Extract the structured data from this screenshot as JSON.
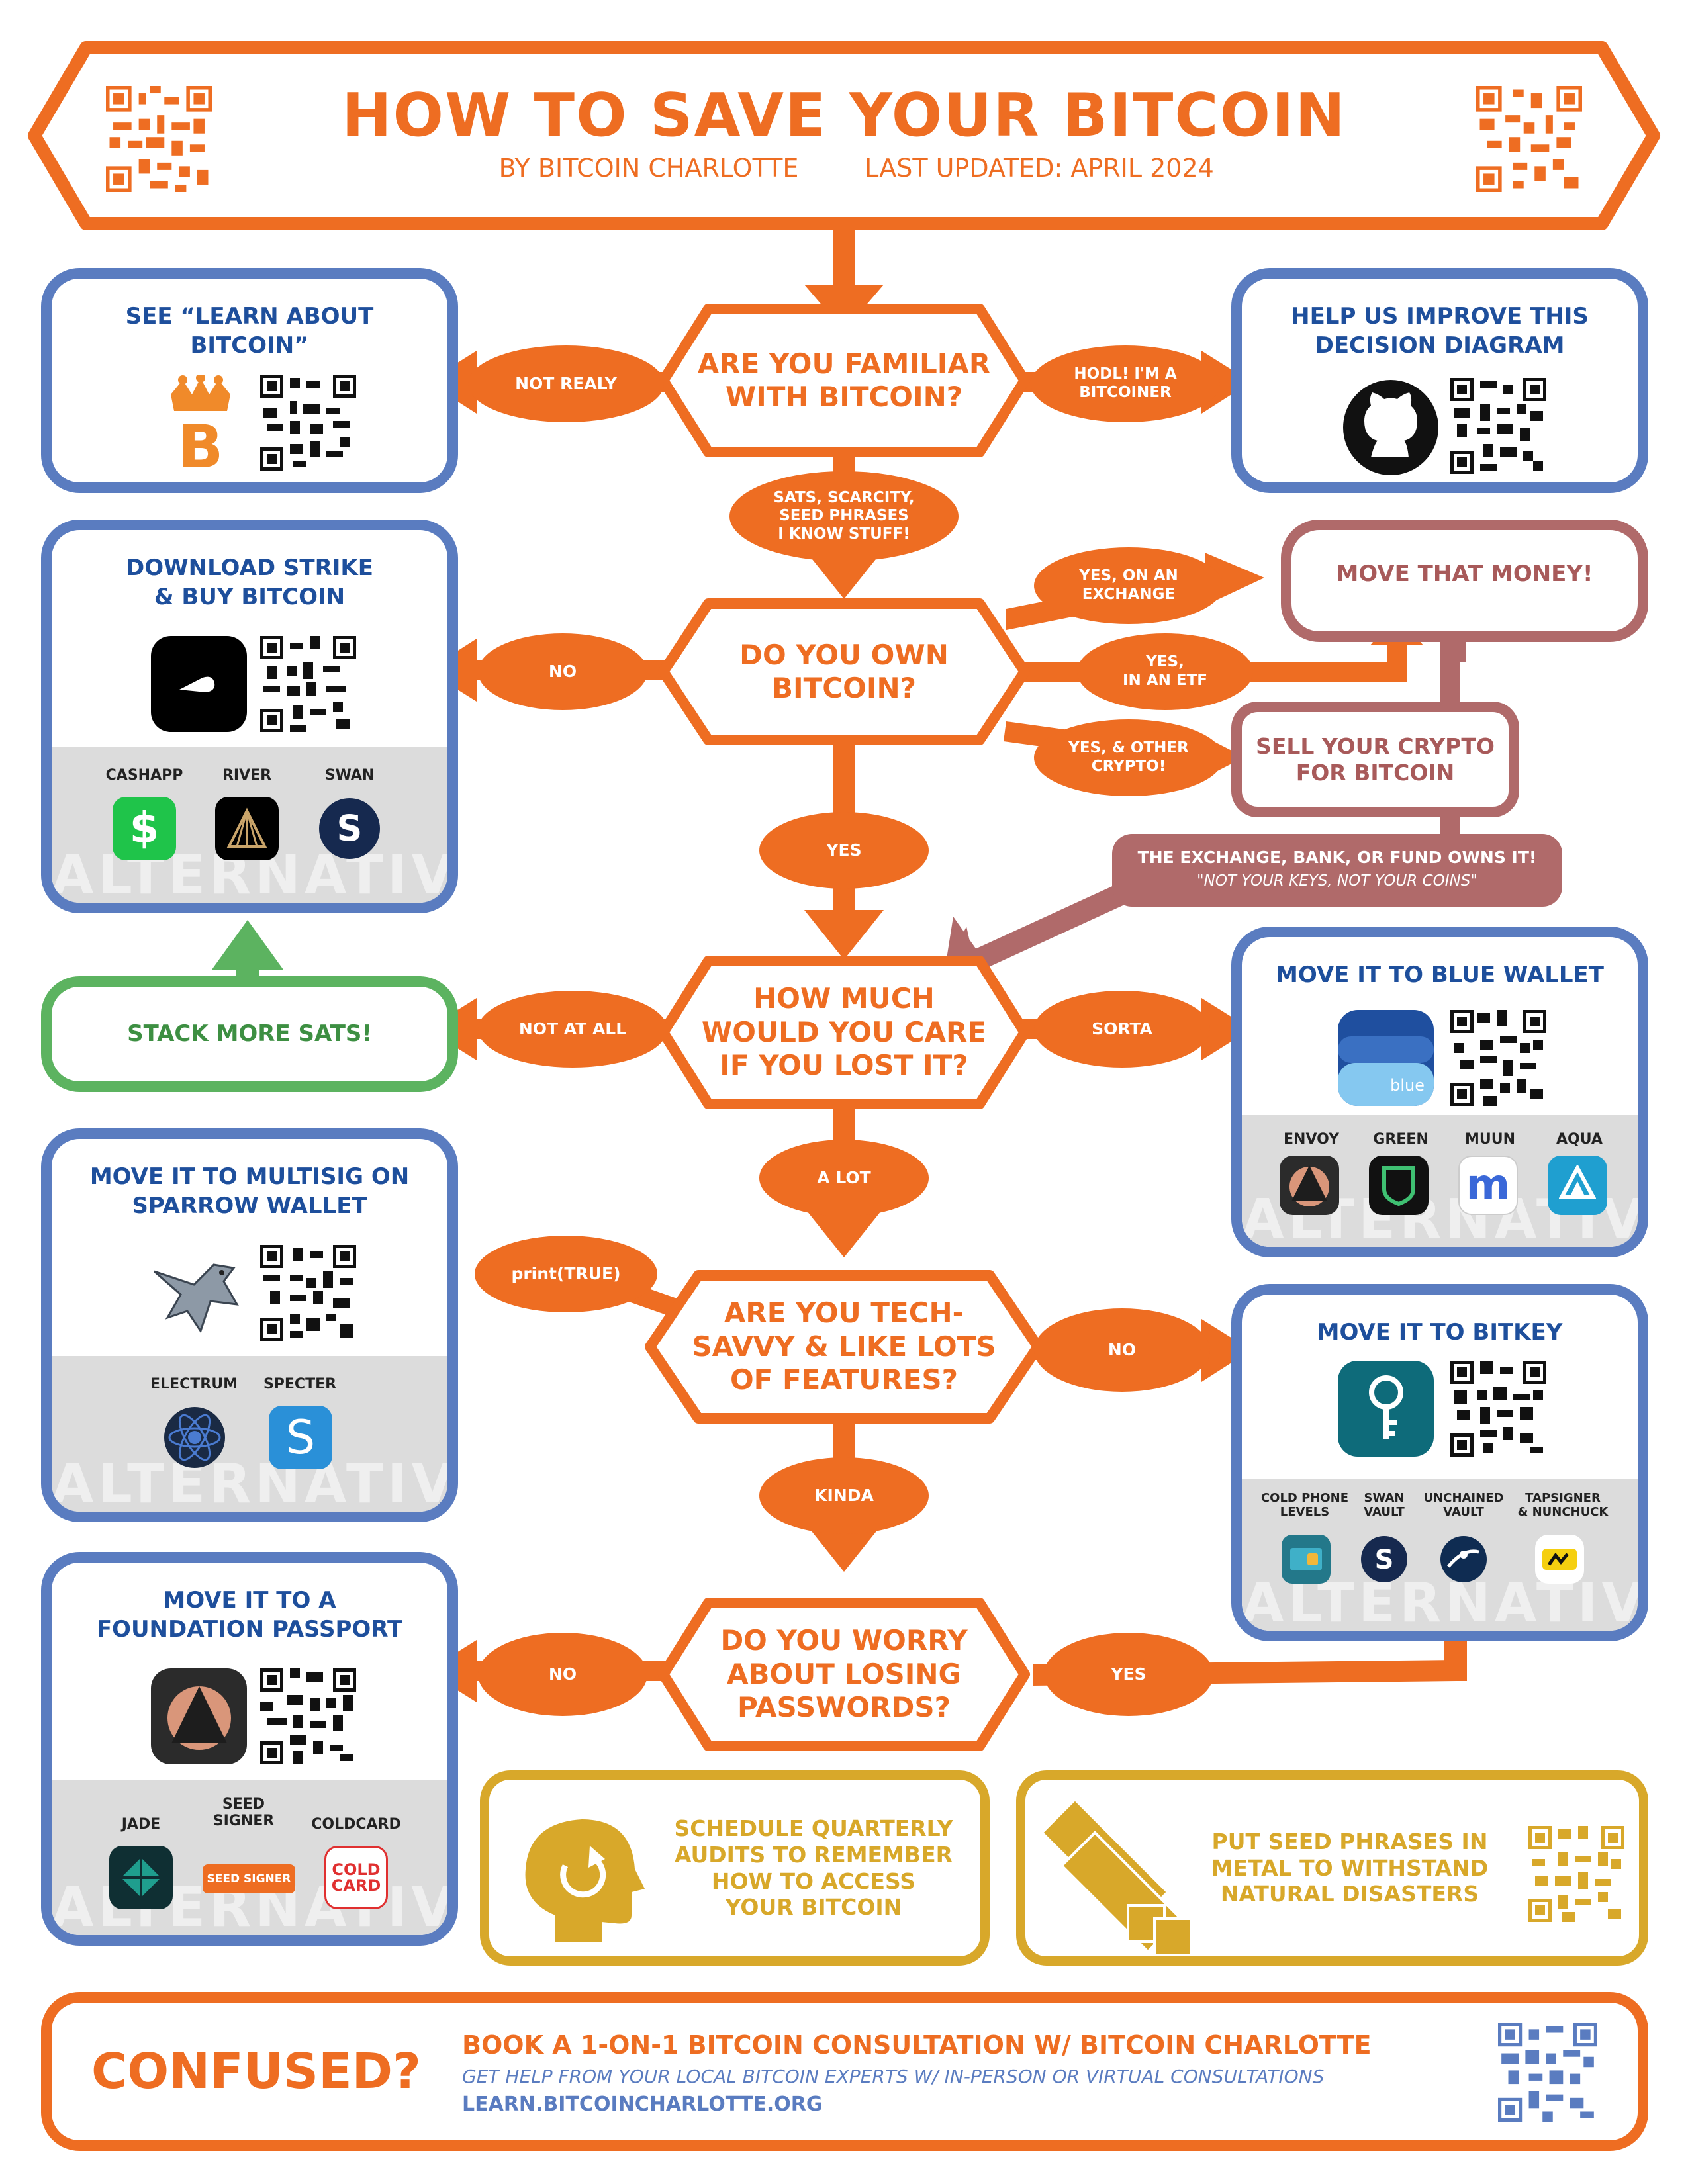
{
  "header": {
    "title": "HOW TO SAVE YOUR BITCOIN",
    "byline": "BY BITCOIN CHARLOTTE",
    "updated": "LAST UPDATED: APRIL 2024"
  },
  "questions": {
    "q1": "ARE YOU FAMILIAR\nWITH BITCOIN?",
    "q2": "DO YOU OWN\nBITCOIN?",
    "q3": "HOW MUCH\nWOULD YOU CARE\nIF YOU LOST IT?",
    "q4": "ARE YOU TECH-\nSAVVY & LIKE LOTS\nOF FEATURES?",
    "q5": "DO YOU WORRY\nABOUT LOSING\nPASSWORDS?"
  },
  "answers": {
    "not_realy": "NOT REALY",
    "hodl": "HODL! I'M A\nBITCOINER",
    "sats": "SATS, SCARCITY,\nSEED PHRASES\nI KNOW STUFF!",
    "no_own": "NO",
    "yes_exchange": "YES, ON AN\nEXCHANGE",
    "yes_etf": "YES,\nIN AN ETF",
    "yes_crypto": "YES, & OTHER\nCRYPTO!",
    "yes_own": "YES",
    "not_at_all": "NOT AT ALL",
    "sorta": "SORTA",
    "a_lot": "A LOT",
    "print_true": "print(TRUE)",
    "no_tech": "NO",
    "kinda": "KINDA",
    "no_worry": "NO",
    "yes_worry": "YES"
  },
  "boxes": {
    "learn": {
      "title": "SEE “LEARN ABOUT\nBITCOIN”"
    },
    "improve": {
      "title": "HELP US IMPROVE THIS\nDECISION DIAGRAM"
    },
    "strike": {
      "title": "DOWNLOAD STRIKE\n& BUY BITCOIN",
      "alternatives": [
        "CASHAPP",
        "RIVER",
        "SWAN"
      ]
    },
    "move_money": "MOVE THAT MONEY!",
    "sell_crypto": "SELL YOUR CRYPTO\nFOR BITCOIN",
    "exchange_warning": "THE EXCHANGE, BANK, OR FUND OWNS IT!",
    "exchange_quote": "\"NOT YOUR KEYS, NOT YOUR COINS\"",
    "stack": "STACK MORE SATS!",
    "blue_wallet": {
      "title": "MOVE IT TO BLUE WALLET",
      "app_label": "blue",
      "alternatives": [
        "ENVOY",
        "GREEN",
        "MUUN",
        "AQUA"
      ]
    },
    "sparrow": {
      "title": "MOVE IT TO MULTISIG ON\nSPARROW WALLET",
      "alternatives": [
        "ELECTRUM",
        "SPECTER"
      ]
    },
    "bitkey": {
      "title": "MOVE IT TO BITKEY",
      "alternatives": [
        "COLD PHONE\nLEVELS",
        "SWAN\nVAULT",
        "UNCHAINED\nVAULT",
        "TAPSIGNER\n& NUNCHUCK"
      ]
    },
    "passport": {
      "title": "MOVE IT TO A\nFOUNDATION PASSPORT",
      "alternatives": [
        "JADE",
        "SEED\nSIGNER",
        "COLDCARD"
      ],
      "seedsigner_logo": "SEED SIGNER",
      "coldcard_logo": "COLD\nCARD"
    },
    "alternatives_word": "ALTERNATIVES"
  },
  "tips": {
    "audits": "SCHEDULE QUARTERLY\nAUDITS TO REMEMBER\nHOW TO ACCESS\nYOUR BITCOIN",
    "metal": "PUT SEED PHRASES IN\nMETAL TO WITHSTAND\nNATURAL DISASTERS"
  },
  "footer": {
    "confused": "CONFUSED?",
    "headline": "BOOK A 1-ON-1 BITCOIN CONSULTATION W/ BITCOIN CHARLOTTE",
    "sub": "GET HELP FROM YOUR LOCAL BITCOIN EXPERTS W/ IN-PERSON OR VIRTUAL CONSULTATIONS",
    "url": "LEARN.BITCOINCHARLOTTE.ORG"
  },
  "colors": {
    "orange": "#ee6d22",
    "blue": "#5a7cc0",
    "navy": "#1e4f9c",
    "mauve": "#b06a6a",
    "green": "#5cb360",
    "gold": "#d8a82a"
  }
}
